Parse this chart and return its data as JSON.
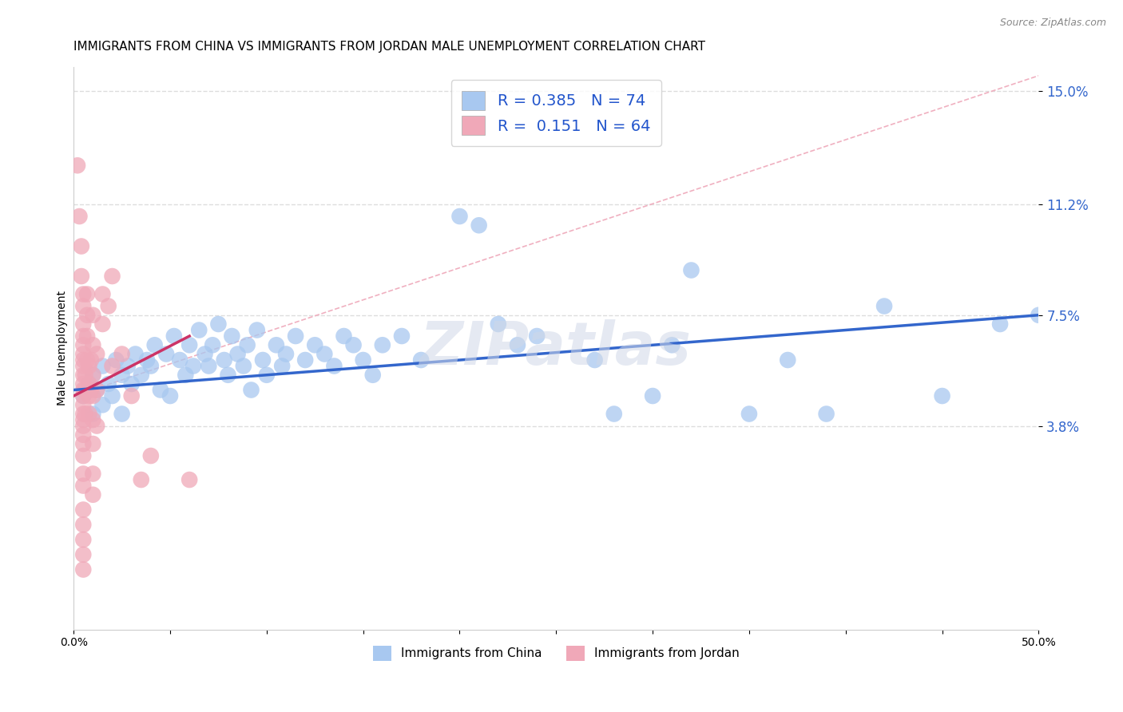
{
  "title": "IMMIGRANTS FROM CHINA VS IMMIGRANTS FROM JORDAN MALE UNEMPLOYMENT CORRELATION CHART",
  "source": "Source: ZipAtlas.com",
  "xlabel": "",
  "ylabel": "Male Unemployment",
  "xlim": [
    0,
    0.5
  ],
  "ylim": [
    -0.03,
    0.158
  ],
  "yticks": [
    0.038,
    0.075,
    0.112,
    0.15
  ],
  "ytick_labels": [
    "3.8%",
    "7.5%",
    "11.2%",
    "15.0%"
  ],
  "xticks": [
    0.0,
    0.05,
    0.1,
    0.15,
    0.2,
    0.25,
    0.3,
    0.35,
    0.4,
    0.45,
    0.5
  ],
  "xtick_labels": [
    "0.0%",
    "",
    "",
    "",
    "",
    "",
    "",
    "",
    "",
    "",
    "50.0%"
  ],
  "china_color": "#a8c8f0",
  "jordan_color": "#f0a8b8",
  "china_line_color": "#3366cc",
  "jordan_line_color": "#cc3366",
  "ref_line_color": "#cccccc",
  "R_china": 0.385,
  "N_china": 74,
  "R_jordan": 0.151,
  "N_jordan": 64,
  "china_scatter": [
    [
      0.005,
      0.048
    ],
    [
      0.008,
      0.052
    ],
    [
      0.01,
      0.055
    ],
    [
      0.01,
      0.042
    ],
    [
      0.012,
      0.05
    ],
    [
      0.015,
      0.058
    ],
    [
      0.015,
      0.045
    ],
    [
      0.018,
      0.052
    ],
    [
      0.02,
      0.048
    ],
    [
      0.022,
      0.06
    ],
    [
      0.025,
      0.055
    ],
    [
      0.025,
      0.042
    ],
    [
      0.028,
      0.058
    ],
    [
      0.03,
      0.052
    ],
    [
      0.032,
      0.062
    ],
    [
      0.035,
      0.055
    ],
    [
      0.038,
      0.06
    ],
    [
      0.04,
      0.058
    ],
    [
      0.042,
      0.065
    ],
    [
      0.045,
      0.05
    ],
    [
      0.048,
      0.062
    ],
    [
      0.05,
      0.048
    ],
    [
      0.052,
      0.068
    ],
    [
      0.055,
      0.06
    ],
    [
      0.058,
      0.055
    ],
    [
      0.06,
      0.065
    ],
    [
      0.062,
      0.058
    ],
    [
      0.065,
      0.07
    ],
    [
      0.068,
      0.062
    ],
    [
      0.07,
      0.058
    ],
    [
      0.072,
      0.065
    ],
    [
      0.075,
      0.072
    ],
    [
      0.078,
      0.06
    ],
    [
      0.08,
      0.055
    ],
    [
      0.082,
      0.068
    ],
    [
      0.085,
      0.062
    ],
    [
      0.088,
      0.058
    ],
    [
      0.09,
      0.065
    ],
    [
      0.092,
      0.05
    ],
    [
      0.095,
      0.07
    ],
    [
      0.098,
      0.06
    ],
    [
      0.1,
      0.055
    ],
    [
      0.105,
      0.065
    ],
    [
      0.108,
      0.058
    ],
    [
      0.11,
      0.062
    ],
    [
      0.115,
      0.068
    ],
    [
      0.12,
      0.06
    ],
    [
      0.125,
      0.065
    ],
    [
      0.13,
      0.062
    ],
    [
      0.135,
      0.058
    ],
    [
      0.14,
      0.068
    ],
    [
      0.145,
      0.065
    ],
    [
      0.15,
      0.06
    ],
    [
      0.155,
      0.055
    ],
    [
      0.16,
      0.065
    ],
    [
      0.17,
      0.068
    ],
    [
      0.18,
      0.06
    ],
    [
      0.2,
      0.108
    ],
    [
      0.21,
      0.105
    ],
    [
      0.22,
      0.072
    ],
    [
      0.23,
      0.065
    ],
    [
      0.24,
      0.068
    ],
    [
      0.27,
      0.06
    ],
    [
      0.28,
      0.042
    ],
    [
      0.3,
      0.048
    ],
    [
      0.31,
      0.065
    ],
    [
      0.32,
      0.09
    ],
    [
      0.35,
      0.042
    ],
    [
      0.37,
      0.06
    ],
    [
      0.39,
      0.042
    ],
    [
      0.42,
      0.078
    ],
    [
      0.45,
      0.048
    ],
    [
      0.48,
      0.072
    ],
    [
      0.5,
      0.075
    ]
  ],
  "jordan_scatter": [
    [
      0.002,
      0.125
    ],
    [
      0.003,
      0.108
    ],
    [
      0.004,
      0.098
    ],
    [
      0.004,
      0.088
    ],
    [
      0.005,
      0.082
    ],
    [
      0.005,
      0.078
    ],
    [
      0.005,
      0.072
    ],
    [
      0.005,
      0.068
    ],
    [
      0.005,
      0.065
    ],
    [
      0.005,
      0.062
    ],
    [
      0.005,
      0.06
    ],
    [
      0.005,
      0.058
    ],
    [
      0.005,
      0.055
    ],
    [
      0.005,
      0.052
    ],
    [
      0.005,
      0.05
    ],
    [
      0.005,
      0.048
    ],
    [
      0.005,
      0.045
    ],
    [
      0.005,
      0.042
    ],
    [
      0.005,
      0.04
    ],
    [
      0.005,
      0.038
    ],
    [
      0.005,
      0.035
    ],
    [
      0.005,
      0.032
    ],
    [
      0.005,
      0.028
    ],
    [
      0.005,
      0.022
    ],
    [
      0.005,
      0.018
    ],
    [
      0.005,
      0.01
    ],
    [
      0.005,
      0.005
    ],
    [
      0.005,
      0.0
    ],
    [
      0.005,
      -0.005
    ],
    [
      0.005,
      -0.01
    ],
    [
      0.006,
      0.055
    ],
    [
      0.006,
      0.05
    ],
    [
      0.006,
      0.042
    ],
    [
      0.007,
      0.082
    ],
    [
      0.007,
      0.075
    ],
    [
      0.007,
      0.068
    ],
    [
      0.007,
      0.06
    ],
    [
      0.008,
      0.058
    ],
    [
      0.008,
      0.052
    ],
    [
      0.008,
      0.048
    ],
    [
      0.008,
      0.042
    ],
    [
      0.009,
      0.06
    ],
    [
      0.009,
      0.05
    ],
    [
      0.01,
      0.075
    ],
    [
      0.01,
      0.065
    ],
    [
      0.01,
      0.055
    ],
    [
      0.01,
      0.048
    ],
    [
      0.01,
      0.04
    ],
    [
      0.01,
      0.032
    ],
    [
      0.01,
      0.022
    ],
    [
      0.01,
      0.015
    ],
    [
      0.012,
      0.062
    ],
    [
      0.012,
      0.05
    ],
    [
      0.012,
      0.038
    ],
    [
      0.015,
      0.082
    ],
    [
      0.015,
      0.072
    ],
    [
      0.018,
      0.078
    ],
    [
      0.02,
      0.088
    ],
    [
      0.02,
      0.058
    ],
    [
      0.025,
      0.062
    ],
    [
      0.03,
      0.048
    ],
    [
      0.035,
      0.02
    ],
    [
      0.04,
      0.028
    ],
    [
      0.06,
      0.02
    ]
  ],
  "background_color": "#ffffff",
  "grid_color": "#dddddd",
  "title_fontsize": 11,
  "axis_label_fontsize": 10,
  "tick_fontsize": 10,
  "legend_fontsize": 13
}
